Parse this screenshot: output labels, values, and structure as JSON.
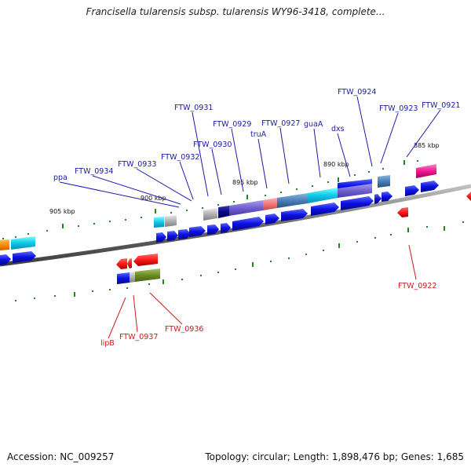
{
  "title": "Francisella tularensis subsp. tularensis WY96-3418, complete...",
  "footer": {
    "accession": "Accession: NC_009257",
    "topology": "Topology: circular; Length: 1,898,476 bp; Genes: 1,685"
  },
  "scale_labels": [
    "905 kbp",
    "900 kbp",
    "895 kbp",
    "890 kbp",
    "885 kbp"
  ],
  "forward_labels": [
    "ppa",
    "FTW_0934",
    "FTW_0933",
    "FTW_0932",
    "FTW_0931",
    "FTW_0930",
    "FTW_0929",
    "truA",
    "FTW_0927",
    "guaA",
    "dxs",
    "FTW_0924",
    "FTW_0923",
    "FTW_0921"
  ],
  "reverse_labels": [
    "lipB",
    "FTW_0937",
    "FTW_0936",
    "FTW_0922"
  ],
  "colors": {
    "backbone": "#7a7a7a",
    "strand_blue": "#0b10e0",
    "reverse_red": "#ff1a1a",
    "tick_green": "#1e8a1e",
    "label_blue": "#1a1aa8",
    "label_red": "#cc1b1b"
  }
}
